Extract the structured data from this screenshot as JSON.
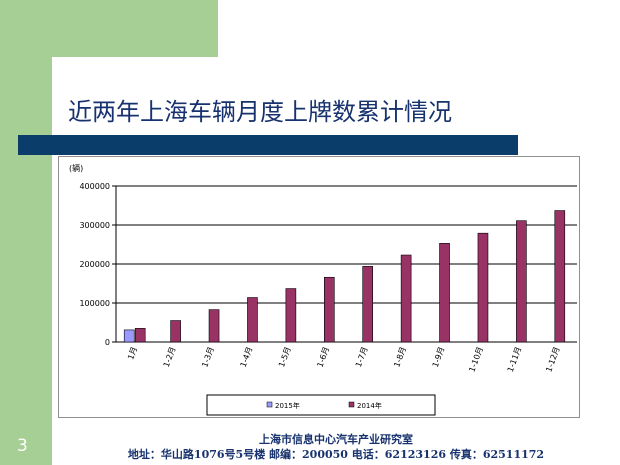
{
  "slide": {
    "title": "近两年上海车辆月度上牌数累计情况",
    "page_number": "3",
    "footer_line1": "上海市信息中心汽车产业研究室",
    "footer_line2": "地址：华山路1076号5号楼  邮编：200050  电话：62123126  传真：62511172"
  },
  "colors": {
    "green_band": "#a6cf95",
    "title_bar": "#0a3d69",
    "title_text": "#17326e",
    "series_2015": "#9999ff",
    "series_2014": "#993366"
  },
  "chart_data": {
    "type": "bar",
    "unit_label": "(辆)",
    "categories": [
      "1月",
      "1-2月",
      "1-3月",
      "1-4月",
      "1-5月",
      "1-6月",
      "1-7月",
      "1-8月",
      "1-9月",
      "1-10月",
      "1-11月",
      "1-12月"
    ],
    "series": [
      {
        "name": "2015年",
        "color": "#9999ff",
        "values": [
          31000,
          null,
          null,
          null,
          null,
          null,
          null,
          null,
          null,
          null,
          null,
          null
        ]
      },
      {
        "name": "2014年",
        "color": "#993366",
        "values": [
          35000,
          55000,
          83000,
          114000,
          137000,
          166000,
          194000,
          223000,
          253000,
          279000,
          311000,
          337000
        ]
      }
    ],
    "yticks": [
      0,
      100000,
      200000,
      300000,
      400000
    ],
    "ytick_labels": [
      "0",
      "100000",
      "200000",
      "300000",
      "400000"
    ],
    "ylim": [
      0,
      400000
    ],
    "grid": true,
    "legend": "bottom"
  }
}
